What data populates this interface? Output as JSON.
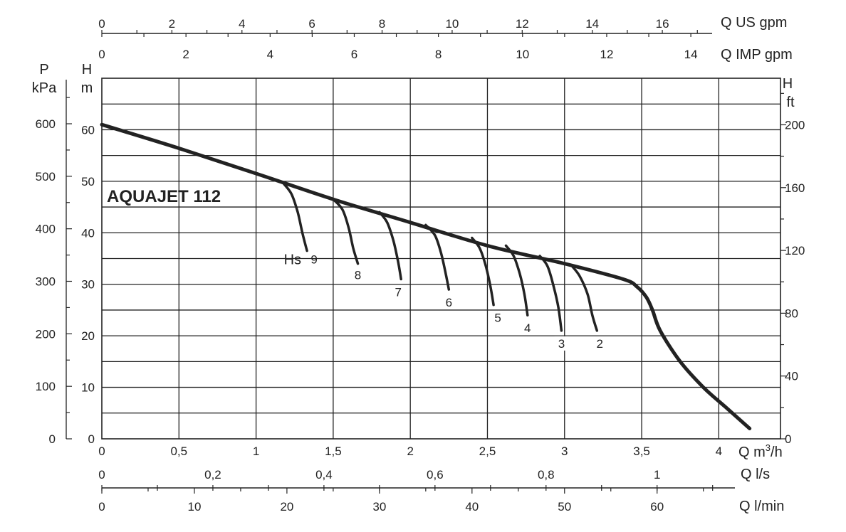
{
  "chart_data": {
    "type": "line",
    "title": "AQUAJET 112",
    "x_primary": {
      "label": "Q m³/h",
      "label_base": "Q m",
      "label_sup": "3",
      "label_tail": "/h",
      "range": [
        0,
        4.4
      ],
      "ticks": [
        "0",
        "0,5",
        "1",
        "1,5",
        "2",
        "2,5",
        "3",
        "3,5",
        "4"
      ],
      "tick_values": [
        0,
        0.5,
        1,
        1.5,
        2,
        2.5,
        3,
        3.5,
        4
      ]
    },
    "x_ls": {
      "label": "Q l/s",
      "ticks": [
        "0",
        "0,2",
        "0,4",
        "0,6",
        "0,8",
        "1"
      ],
      "tick_values": [
        0,
        0.2,
        0.4,
        0.6,
        0.8,
        1
      ]
    },
    "x_lmin": {
      "label": "Q l/min",
      "ticks": [
        "0",
        "10",
        "20",
        "30",
        "40",
        "50",
        "60"
      ],
      "tick_values": [
        0,
        10,
        20,
        30,
        40,
        50,
        60
      ]
    },
    "x_us_gpm": {
      "label": "Q US gpm",
      "ticks": [
        "0",
        "2",
        "4",
        "6",
        "8",
        "10",
        "12",
        "14",
        "16"
      ],
      "tick_values": [
        0,
        2,
        4,
        6,
        8,
        10,
        12,
        14,
        16
      ]
    },
    "x_imp_gpm": {
      "label": "Q IMP gpm",
      "ticks": [
        "0",
        "2",
        "4",
        "6",
        "8",
        "10",
        "12",
        "14"
      ],
      "tick_values": [
        0,
        2,
        4,
        6,
        8,
        10,
        12,
        14
      ]
    },
    "y_m": {
      "label_top": "H",
      "label_bottom": "m",
      "range": [
        0,
        70
      ],
      "ticks": [
        "0",
        "10",
        "20",
        "30",
        "40",
        "50",
        "60"
      ],
      "tick_values": [
        0,
        10,
        20,
        30,
        40,
        50,
        60
      ]
    },
    "y_kpa": {
      "label_top": "P",
      "label_bottom": "kPa",
      "ticks": [
        "0",
        "100",
        "200",
        "300",
        "400",
        "500",
        "600"
      ],
      "tick_values": [
        0,
        100,
        200,
        300,
        400,
        500,
        600
      ]
    },
    "y_ft": {
      "label_top": "H",
      "label_bottom": "ft",
      "ticks": [
        "0",
        "40",
        "80",
        "120",
        "160",
        "200"
      ],
      "tick_values": [
        0,
        40,
        80,
        120,
        160,
        200
      ]
    },
    "grid": true,
    "series": [
      {
        "points": [
          [
            0,
            61
          ],
          [
            0.5,
            56.4
          ],
          [
            1,
            51.5
          ],
          [
            1.5,
            46.5
          ],
          [
            2,
            42
          ],
          [
            2.5,
            37.5
          ],
          [
            3,
            34
          ],
          [
            3.38,
            31
          ],
          [
            3.47,
            29.5
          ],
          [
            3.53,
            27.5
          ],
          [
            3.57,
            25
          ],
          [
            3.62,
            21
          ],
          [
            3.75,
            15
          ],
          [
            3.9,
            10
          ],
          [
            4.05,
            6
          ],
          [
            4.2,
            2
          ]
        ]
      }
    ],
    "suction_curves": [
      {
        "hs": "Hs",
        "label": "9",
        "points": [
          [
            1.18,
            49.5
          ],
          [
            1.23,
            47.5
          ],
          [
            1.27,
            44
          ],
          [
            1.3,
            40
          ],
          [
            1.33,
            36.5
          ]
        ]
      },
      {
        "label": "8",
        "points": [
          [
            1.5,
            46.5
          ],
          [
            1.56,
            44.5
          ],
          [
            1.6,
            41
          ],
          [
            1.63,
            37
          ],
          [
            1.66,
            34
          ]
        ]
      },
      {
        "label": "7",
        "points": [
          [
            1.8,
            44
          ],
          [
            1.85,
            42
          ],
          [
            1.89,
            38.5
          ],
          [
            1.92,
            34.5
          ],
          [
            1.94,
            31
          ]
        ]
      },
      {
        "label": "6",
        "points": [
          [
            2.1,
            41.5
          ],
          [
            2.16,
            39.5
          ],
          [
            2.2,
            36
          ],
          [
            2.23,
            32
          ],
          [
            2.25,
            29
          ]
        ]
      },
      {
        "label": "5",
        "points": [
          [
            2.4,
            39
          ],
          [
            2.45,
            37
          ],
          [
            2.49,
            33.5
          ],
          [
            2.52,
            29.5
          ],
          [
            2.54,
            26
          ]
        ]
      },
      {
        "label": "4",
        "points": [
          [
            2.62,
            37.5
          ],
          [
            2.67,
            35.5
          ],
          [
            2.71,
            32
          ],
          [
            2.74,
            28
          ],
          [
            2.76,
            24
          ]
        ]
      },
      {
        "label": "3",
        "points": [
          [
            2.84,
            35.5
          ],
          [
            2.89,
            33.5
          ],
          [
            2.93,
            29.5
          ],
          [
            2.96,
            25.5
          ],
          [
            2.98,
            21
          ]
        ]
      },
      {
        "label": "2",
        "points": [
          [
            3.05,
            33.5
          ],
          [
            3.1,
            31.5
          ],
          [
            3.15,
            28
          ],
          [
            3.18,
            24
          ],
          [
            3.21,
            21
          ]
        ]
      }
    ]
  }
}
